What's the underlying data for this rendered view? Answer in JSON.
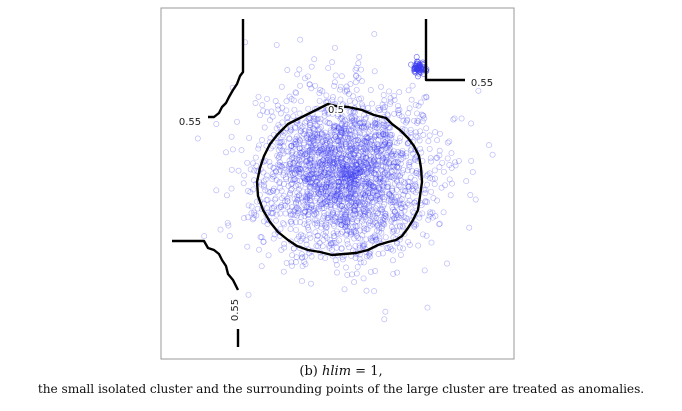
{
  "figure": {
    "caption_label": "(b)",
    "caption_param": "hlim",
    "caption_value": " = 1,",
    "caption_text": "the small isolated cluster and the surrounding points of the large cluster are treated as anomalies."
  },
  "chart_data": {
    "type": "scatter",
    "title": "",
    "xlabel": "",
    "ylabel": "",
    "axes_ticks_shown": false,
    "grid": false,
    "colors": {
      "points": "#3c3cf0",
      "contour": "#000000",
      "frame": "#9a9a9a"
    },
    "series": [
      {
        "cluster": "large",
        "count": 2400,
        "center": [
          0.52,
          0.53
        ],
        "spread": [
          0.12,
          0.115
        ],
        "marker": "open-circle"
      },
      {
        "cluster": "small",
        "count": 60,
        "center": [
          0.73,
          0.83
        ],
        "spread": [
          0.009,
          0.009
        ],
        "marker": "open-circle"
      }
    ],
    "contour_levels": [
      {
        "label": "0.5",
        "shape": "closed loop around the large cluster"
      },
      {
        "label": "0.55",
        "region": "top-left"
      },
      {
        "label": "0.55",
        "region": "top-right"
      },
      {
        "label": "0.55",
        "region": "bottom-left"
      }
    ]
  }
}
